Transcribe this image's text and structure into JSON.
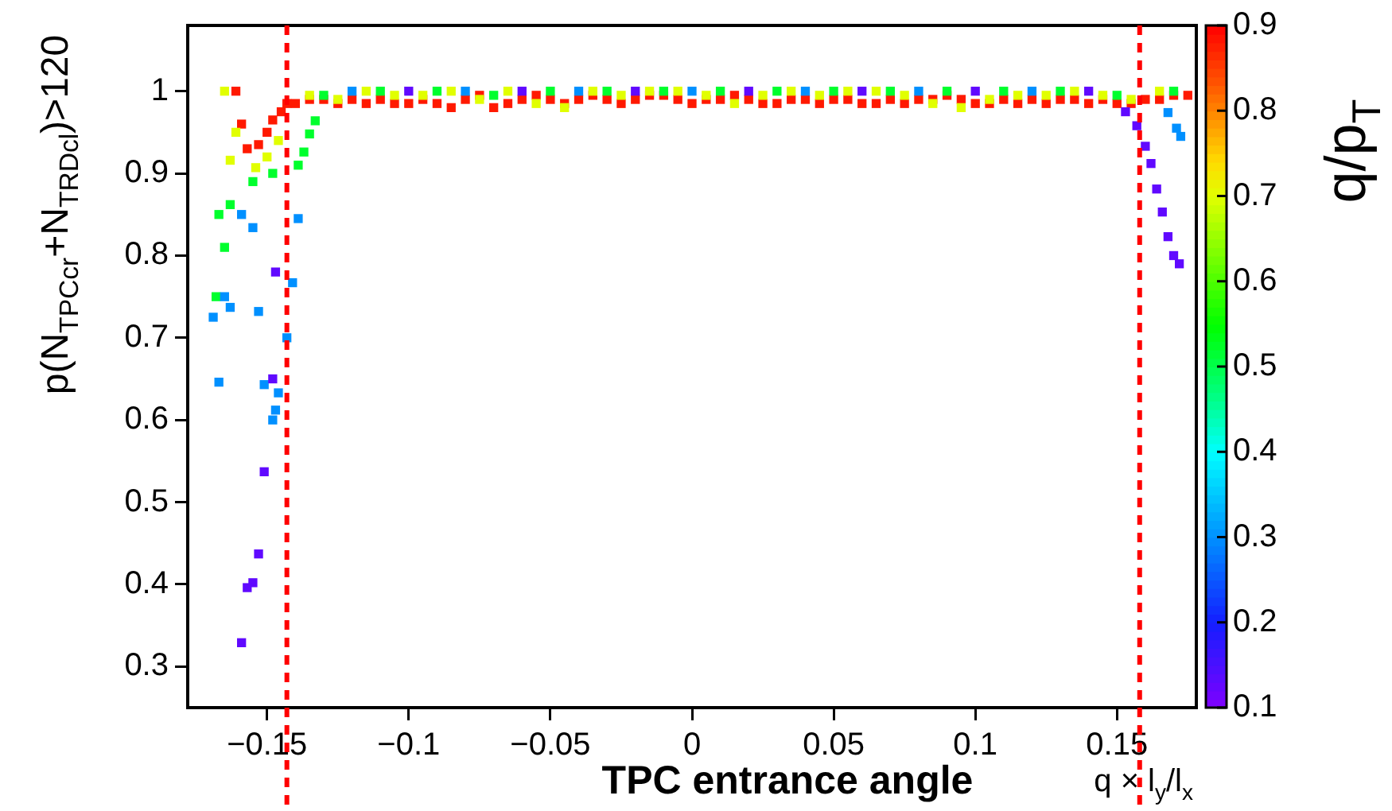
{
  "chart_data": {
    "type": "scatter",
    "xlabel": "TPC entrance angle",
    "ylabel": "p(N$_{TPCcr}$+N$_{TRDcl}$)>120",
    "clabel": "q/p$_{T}$",
    "annotations": [
      "q × l$_{y}$/l$_{x}$"
    ],
    "xlim": [
      -0.178,
      0.178
    ],
    "ylim": [
      0.25,
      1.08
    ],
    "xticks": [
      {
        "value": -0.15,
        "label": "−0.15"
      },
      {
        "value": -0.1,
        "label": "−0.1"
      },
      {
        "value": -0.05,
        "label": "−0.05"
      },
      0,
      0.05,
      0.1,
      0.15
    ],
    "yticks": [
      0.3,
      0.4,
      0.5,
      0.6,
      0.7,
      0.8,
      0.9,
      1
    ],
    "clim": [
      0.1,
      0.9
    ],
    "cticks": [
      0.1,
      0.2,
      0.3,
      0.4,
      0.5,
      0.6,
      0.7,
      0.8,
      0.9
    ],
    "grid": false,
    "legend": false,
    "marker": "square",
    "ref_lines": [
      {
        "axis": "x",
        "value": -0.143,
        "color": "#ff0000",
        "line_style": "dashed"
      },
      {
        "axis": "x",
        "value": 0.158,
        "color": "#ff0000",
        "line_style": "dashed"
      }
    ],
    "series": [
      {
        "x": [
          -0.147,
          -0.148,
          -0.151,
          -0.153,
          -0.155,
          -0.157,
          -0.159,
          -0.1,
          -0.06,
          -0.02,
          0.02,
          0.06,
          0.1,
          0.14,
          0.153,
          0.157,
          0.16,
          0.162,
          0.164,
          0.166,
          0.168,
          0.17,
          0.172
        ],
        "values": [
          0.78,
          0.65,
          0.537,
          0.437,
          0.402,
          0.396,
          0.329,
          1.0,
          1.0,
          1.0,
          1.0,
          1.0,
          1.0,
          1.0,
          0.975,
          0.958,
          0.933,
          0.912,
          0.881,
          0.853,
          0.823,
          0.8,
          0.79
        ],
        "cvalues": [
          0.13,
          0.13,
          0.13,
          0.13,
          0.13,
          0.13,
          0.13,
          0.13,
          0.13,
          0.13,
          0.13,
          0.13,
          0.13,
          0.13,
          0.13,
          0.13,
          0.13,
          0.13,
          0.13,
          0.13,
          0.13,
          0.13,
          0.13
        ]
      },
      {
        "x": [
          -0.159,
          -0.155,
          -0.139,
          -0.141,
          -0.165,
          -0.163,
          -0.169,
          -0.153,
          -0.143,
          -0.167,
          -0.151,
          -0.146,
          -0.147,
          -0.148,
          -0.12,
          -0.08,
          -0.04,
          0,
          0.04,
          0.08,
          0.12,
          0.168,
          0.171,
          0.1725
        ],
        "values": [
          0.85,
          0.834,
          0.845,
          0.767,
          0.75,
          0.737,
          0.725,
          0.732,
          0.7,
          0.646,
          0.643,
          0.633,
          0.612,
          0.6,
          1.0,
          1.0,
          1.0,
          1.0,
          1.0,
          1.0,
          1.0,
          0.974,
          0.955,
          0.945
        ],
        "cvalues": [
          0.3,
          0.3,
          0.3,
          0.3,
          0.3,
          0.3,
          0.3,
          0.3,
          0.3,
          0.3,
          0.3,
          0.3,
          0.3,
          0.3,
          0.3,
          0.3,
          0.3,
          0.3,
          0.3,
          0.3,
          0.3,
          0.3,
          0.3,
          0.3
        ]
      },
      {
        "x": [
          -0.167,
          -0.163,
          -0.165,
          -0.168,
          -0.155,
          -0.148,
          -0.139,
          -0.137,
          -0.135,
          -0.133,
          -0.13,
          -0.11,
          -0.09,
          -0.07,
          -0.05,
          -0.03,
          -0.01,
          0.01,
          0.03,
          0.05,
          0.07,
          0.09,
          0.11,
          0.13,
          0.15,
          0.17
        ],
        "values": [
          0.85,
          0.862,
          0.81,
          0.75,
          0.89,
          0.9,
          0.91,
          0.926,
          0.948,
          0.964,
          0.995,
          1.0,
          1.0,
          0.995,
          1.0,
          1.0,
          1.0,
          1.0,
          1.0,
          1.0,
          1.0,
          1.0,
          1.0,
          1.0,
          0.995,
          1.0
        ],
        "cvalues": [
          0.52,
          0.52,
          0.52,
          0.52,
          0.52,
          0.52,
          0.52,
          0.52,
          0.52,
          0.52,
          0.52,
          0.52,
          0.52,
          0.52,
          0.52,
          0.52,
          0.52,
          0.52,
          0.52,
          0.52,
          0.52,
          0.52,
          0.52,
          0.52,
          0.52,
          0.52
        ]
      },
      {
        "x": [
          -0.165,
          -0.161,
          -0.163,
          -0.154,
          -0.15,
          -0.146,
          -0.135,
          -0.125,
          -0.115,
          -0.105,
          -0.095,
          -0.085,
          -0.075,
          -0.065,
          -0.055,
          -0.045,
          -0.035,
          -0.025,
          -0.015,
          -0.005,
          0.005,
          0.015,
          0.025,
          0.035,
          0.045,
          0.055,
          0.065,
          0.075,
          0.085,
          0.095,
          0.105,
          0.115,
          0.125,
          0.135,
          0.145,
          0.155,
          0.165
        ],
        "values": [
          1.0,
          0.95,
          0.916,
          0.907,
          0.92,
          0.94,
          0.995,
          0.99,
          1.0,
          0.995,
          0.995,
          1.0,
          0.99,
          1.0,
          0.985,
          0.98,
          1.0,
          0.995,
          1.0,
          1.0,
          0.995,
          0.985,
          0.995,
          1.0,
          0.995,
          1.0,
          1.0,
          0.995,
          0.985,
          0.98,
          0.99,
          0.995,
          0.995,
          1.0,
          0.995,
          0.99,
          1.0
        ],
        "cvalues": [
          0.7,
          0.7,
          0.7,
          0.7,
          0.7,
          0.7,
          0.7,
          0.7,
          0.7,
          0.7,
          0.7,
          0.7,
          0.7,
          0.7,
          0.7,
          0.7,
          0.7,
          0.7,
          0.7,
          0.7,
          0.7,
          0.7,
          0.7,
          0.7,
          0.7,
          0.7,
          0.7,
          0.7,
          0.7,
          0.7,
          0.7,
          0.7,
          0.7,
          0.7,
          0.7,
          0.7,
          0.7
        ]
      },
      {
        "x": [
          -0.161,
          -0.159,
          -0.157,
          -0.153,
          -0.15,
          -0.148,
          -0.145,
          -0.143,
          -0.14,
          -0.135,
          -0.13,
          -0.125,
          -0.12,
          -0.115,
          -0.11,
          -0.105,
          -0.1,
          -0.095,
          -0.09,
          -0.085,
          -0.08,
          -0.075,
          -0.07,
          -0.065,
          -0.06,
          -0.055,
          -0.05,
          -0.045,
          -0.04,
          -0.035,
          -0.03,
          -0.025,
          -0.02,
          -0.015,
          -0.01,
          -0.005,
          0,
          0.005,
          0.01,
          0.015,
          0.02,
          0.025,
          0.03,
          0.035,
          0.04,
          0.045,
          0.05,
          0.055,
          0.06,
          0.065,
          0.07,
          0.075,
          0.08,
          0.085,
          0.09,
          0.095,
          0.1,
          0.105,
          0.11,
          0.115,
          0.12,
          0.125,
          0.13,
          0.135,
          0.14,
          0.145,
          0.15,
          0.155,
          0.16,
          0.165,
          0.17,
          0.175
        ],
        "values": [
          1.0,
          0.96,
          0.93,
          0.935,
          0.95,
          0.965,
          0.975,
          0.985,
          0.985,
          0.99,
          0.99,
          0.985,
          0.99,
          0.985,
          0.99,
          0.985,
          0.985,
          0.99,
          0.985,
          0.98,
          0.99,
          0.995,
          0.98,
          0.985,
          0.99,
          0.995,
          0.99,
          0.985,
          0.99,
          0.995,
          0.99,
          0.985,
          0.99,
          0.995,
          0.995,
          0.99,
          0.985,
          0.99,
          0.99,
          0.995,
          0.99,
          0.985,
          0.985,
          0.99,
          0.99,
          0.985,
          0.99,
          0.99,
          0.985,
          0.985,
          0.99,
          0.985,
          0.99,
          0.99,
          0.995,
          0.99,
          0.985,
          0.985,
          0.99,
          0.985,
          0.99,
          0.985,
          0.99,
          0.99,
          0.985,
          0.99,
          0.985,
          0.985,
          0.99,
          0.99,
          0.995,
          0.995
        ],
        "cvalues": [
          0.88,
          0.88,
          0.88,
          0.88,
          0.88,
          0.88,
          0.88,
          0.88,
          0.88,
          0.88,
          0.88,
          0.88,
          0.88,
          0.88,
          0.88,
          0.88,
          0.88,
          0.88,
          0.88,
          0.88,
          0.88,
          0.88,
          0.88,
          0.88,
          0.88,
          0.88,
          0.88,
          0.88,
          0.88,
          0.88,
          0.88,
          0.88,
          0.88,
          0.88,
          0.88,
          0.88,
          0.88,
          0.88,
          0.88,
          0.88,
          0.88,
          0.88,
          0.88,
          0.88,
          0.88,
          0.88,
          0.88,
          0.88,
          0.88,
          0.88,
          0.88,
          0.88,
          0.88,
          0.88,
          0.88,
          0.88,
          0.88,
          0.88,
          0.88,
          0.88,
          0.88,
          0.88,
          0.88,
          0.88,
          0.88,
          0.88,
          0.88,
          0.88,
          0.88,
          0.88,
          0.88,
          0.88
        ]
      }
    ]
  }
}
